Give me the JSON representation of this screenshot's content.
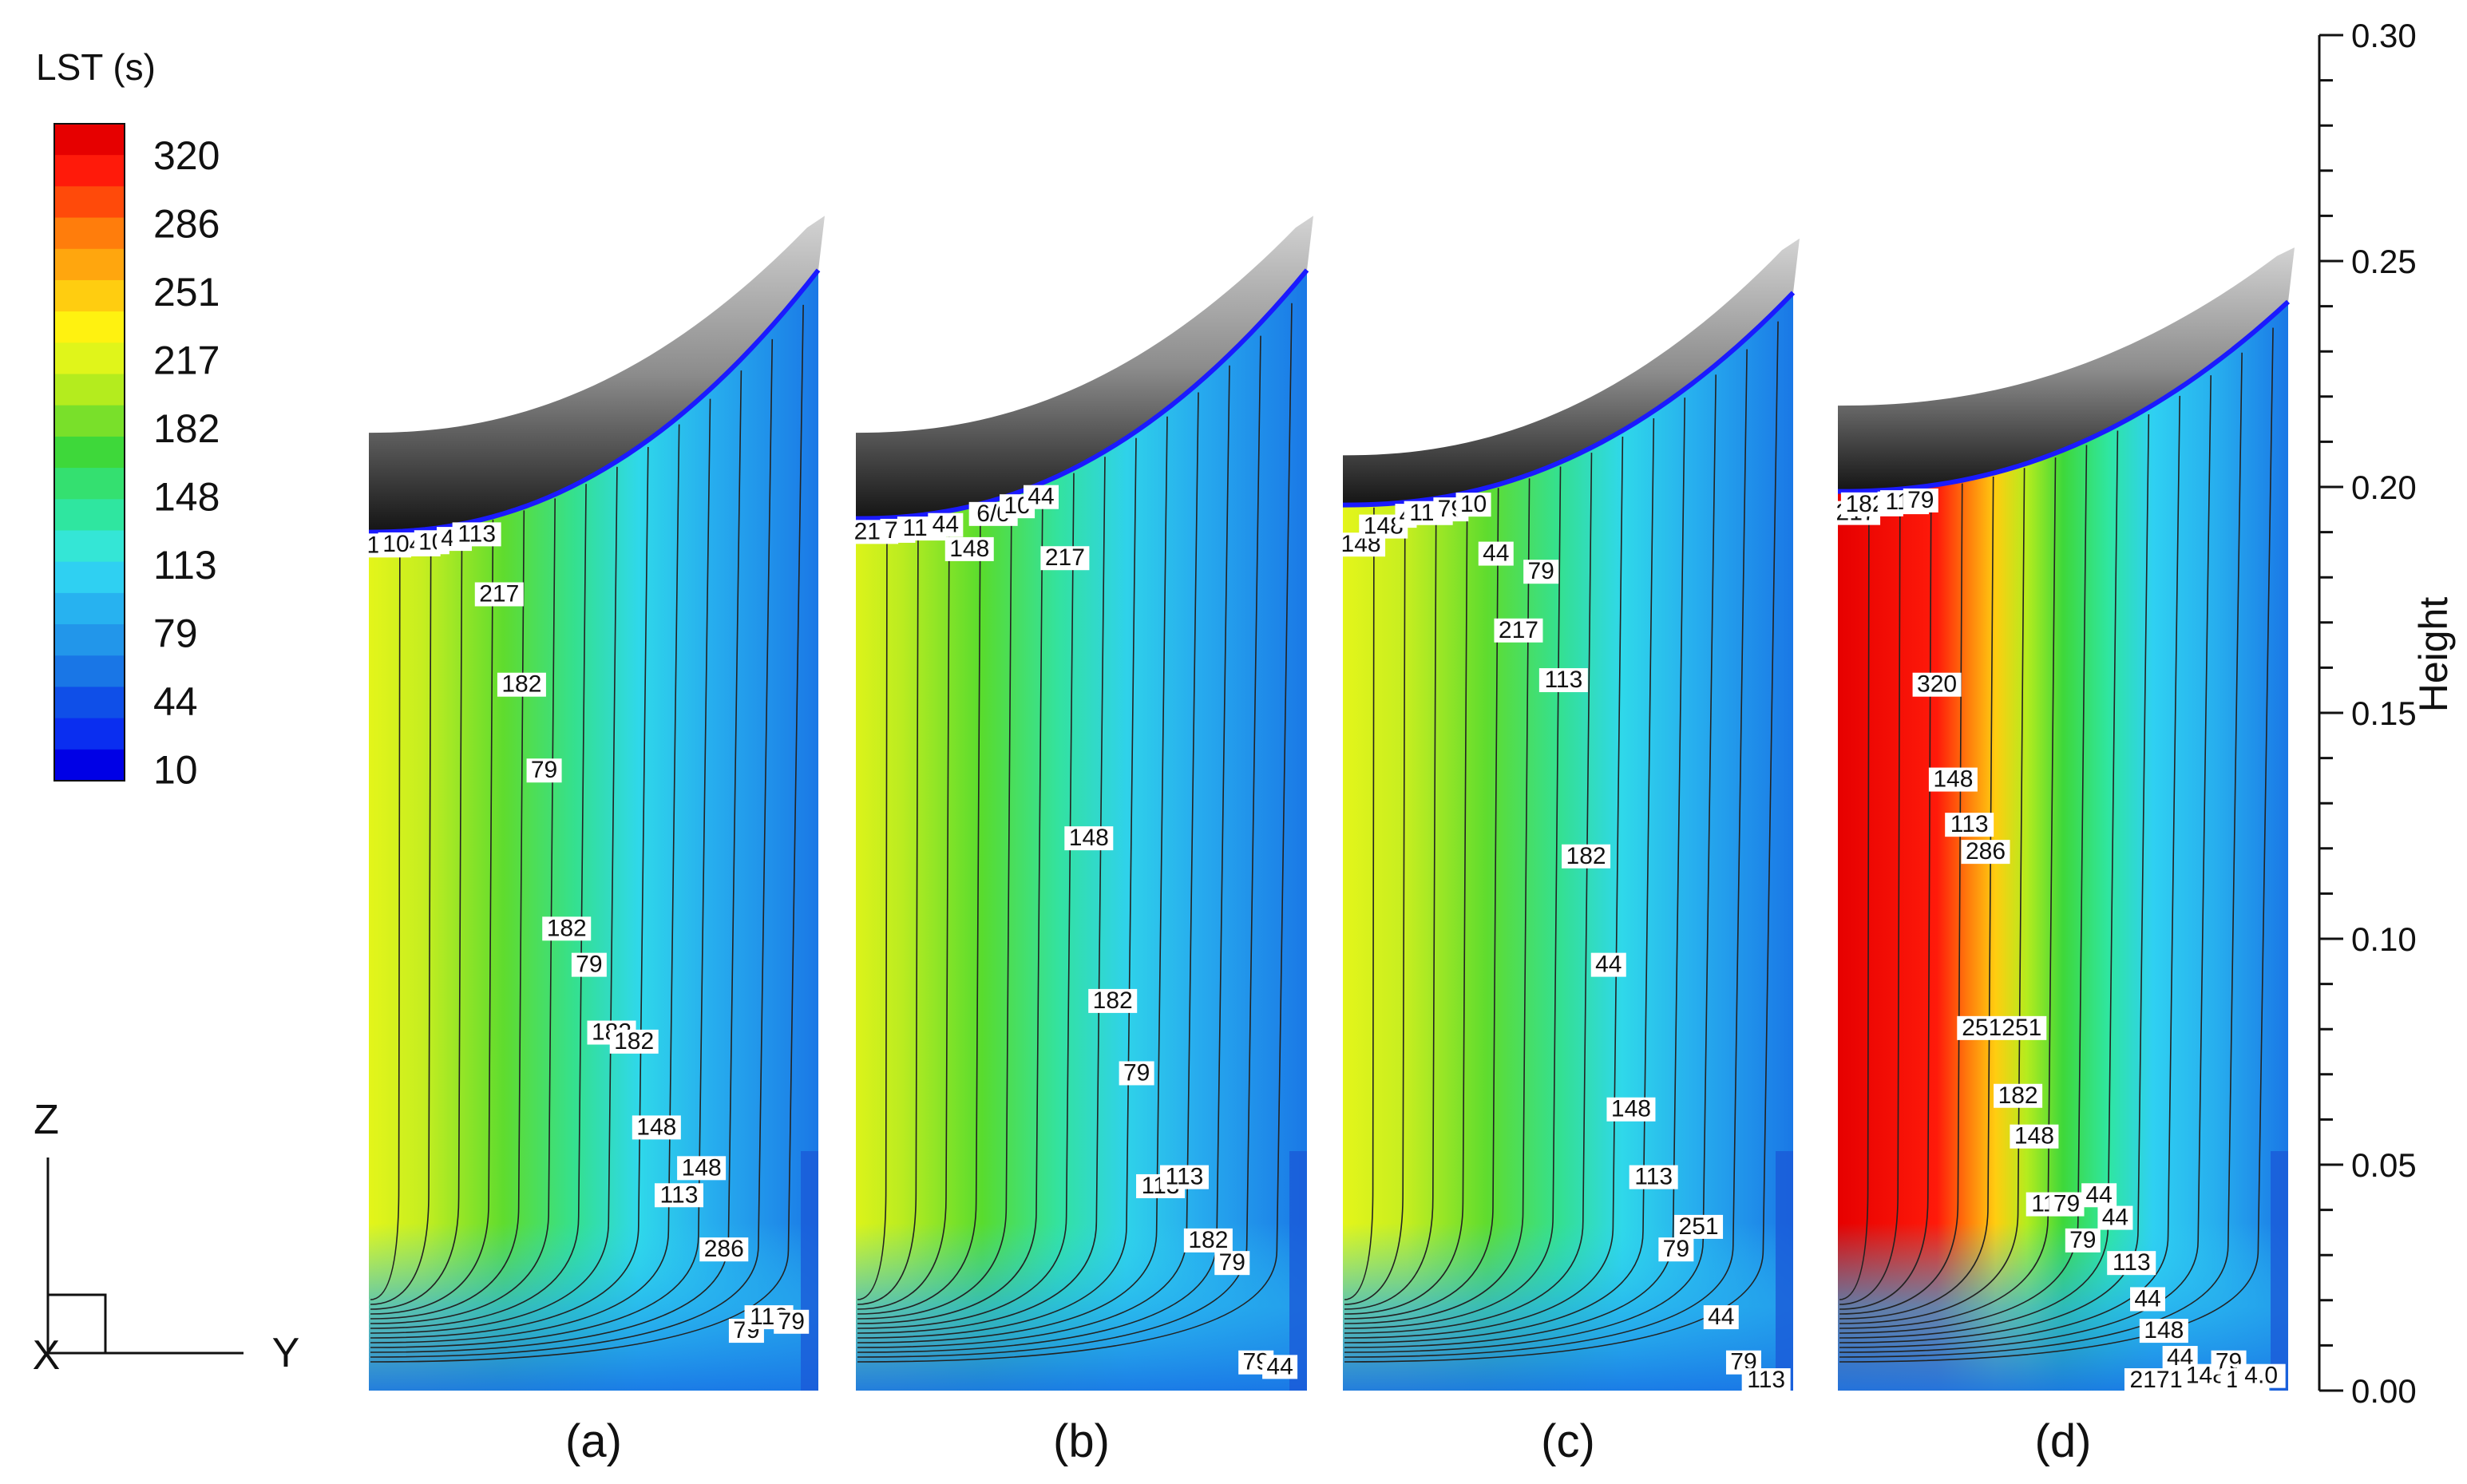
{
  "legend": {
    "title": "LST (s)",
    "levels": [
      "320",
      "286",
      "251",
      "217",
      "182",
      "148",
      "113",
      "79",
      "44",
      "10"
    ]
  },
  "colors": {
    "scale": [
      "#0000e6",
      "#0a2ef0",
      "#0f4fe8",
      "#1976e6",
      "#2296ea",
      "#27b2f0",
      "#2fd0f2",
      "#34e6d6",
      "#2fe6a0",
      "#34e070",
      "#3ed83a",
      "#79e02a",
      "#b4ec1e",
      "#e0f51a",
      "#fff210",
      "#ffcd10",
      "#ffa60e",
      "#ff7d0c",
      "#ff4a0a",
      "#ff1a0a",
      "#e60000"
    ],
    "contour": "#222222",
    "wall_top": "#c9c9c9",
    "wall_bottom": "#111111",
    "wall_edge": "#1a1aff"
  },
  "axes": {
    "ylabel": "Height",
    "ticks": [
      "0.30",
      "0.25",
      "0.20",
      "0.15",
      "0.10",
      "0.05",
      "0.00"
    ]
  },
  "coords": {
    "z": "Z",
    "y": "Y",
    "x": "X"
  },
  "chart_data": {
    "type": "contour",
    "variable": "LST (s)",
    "contour_levels": [
      10,
      44,
      79,
      113,
      148,
      182,
      217,
      251,
      286,
      320
    ],
    "ylabel": "Height",
    "ylim": [
      0.0,
      0.3
    ],
    "yticks": [
      0.0,
      0.05,
      0.1,
      0.15,
      0.2,
      0.25,
      0.3
    ],
    "panels": [
      {
        "caption": "(a)",
        "labels": [
          {
            "text": "148",
            "y": 0.193
          },
          {
            "text": "1048",
            "y": 0.196
          },
          {
            "text": "10",
            "y": 0.203
          },
          {
            "text": "44",
            "y": 0.205
          },
          {
            "text": "113",
            "y": 0.215
          },
          {
            "text": "217",
            "y": 0.175
          },
          {
            "text": "182",
            "y": 0.155
          },
          {
            "text": "79",
            "y": 0.136
          },
          {
            "text": "182",
            "y": 0.101
          },
          {
            "text": "79",
            "y": 0.093
          },
          {
            "text": "182",
            "y": 0.078
          },
          {
            "text": "182",
            "y": 0.076
          },
          {
            "text": "148",
            "y": 0.057
          },
          {
            "text": "113",
            "y": 0.042
          },
          {
            "text": "148",
            "y": 0.048
          },
          {
            "text": "286",
            "y": 0.03
          },
          {
            "text": "79",
            "y": 0.012
          },
          {
            "text": "113",
            "y": 0.015
          },
          {
            "text": "79",
            "y": 0.014
          }
        ]
      },
      {
        "caption": "(b)",
        "labels": [
          {
            "text": "217",
            "y": 0.19
          },
          {
            "text": "79",
            "y": 0.196
          },
          {
            "text": "113",
            "y": 0.203
          },
          {
            "text": "44",
            "y": 0.207
          },
          {
            "text": "148",
            "y": 0.185
          },
          {
            "text": "6/0",
            "y": 0.222
          },
          {
            "text": "10",
            "y": 0.234
          },
          {
            "text": "44",
            "y": 0.227
          },
          {
            "text": "217",
            "y": 0.183
          },
          {
            "text": "148",
            "y": 0.121
          },
          {
            "text": "182",
            "y": 0.085
          },
          {
            "text": "79",
            "y": 0.069
          },
          {
            "text": "113",
            "y": 0.044
          },
          {
            "text": "113",
            "y": 0.046
          },
          {
            "text": "182",
            "y": 0.032
          },
          {
            "text": "79",
            "y": 0.027
          },
          {
            "text": "79",
            "y": 0.005
          },
          {
            "text": "44",
            "y": 0.004
          }
        ]
      },
      {
        "caption": "(c)",
        "labels": [
          {
            "text": "148",
            "y": 0.186
          },
          {
            "text": "148",
            "y": 0.19
          },
          {
            "text": "4",
            "y": 0.196
          },
          {
            "text": "113",
            "y": 0.198
          },
          {
            "text": "79",
            "y": 0.211
          },
          {
            "text": "10",
            "y": 0.233
          },
          {
            "text": "44",
            "y": 0.184
          },
          {
            "text": "217",
            "y": 0.167
          },
          {
            "text": "79",
            "y": 0.18
          },
          {
            "text": "113",
            "y": 0.156
          },
          {
            "text": "182",
            "y": 0.117
          },
          {
            "text": "44",
            "y": 0.093
          },
          {
            "text": "148",
            "y": 0.061
          },
          {
            "text": "113",
            "y": 0.046
          },
          {
            "text": "79",
            "y": 0.03
          },
          {
            "text": "251",
            "y": 0.035
          },
          {
            "text": "44",
            "y": 0.015
          },
          {
            "text": "79",
            "y": 0.005
          },
          {
            "text": "113",
            "y": 0.001
          }
        ]
      },
      {
        "caption": "(d)",
        "labels": [
          {
            "text": "217",
            "y": 0.193
          },
          {
            "text": "1829",
            "y": 0.196
          },
          {
            "text": "4",
            "y": 0.199
          },
          {
            "text": "113",
            "y": 0.203
          },
          {
            "text": "79",
            "y": 0.215
          },
          {
            "text": "320",
            "y": 0.155
          },
          {
            "text": "148",
            "y": 0.134
          },
          {
            "text": "113",
            "y": 0.124
          },
          {
            "text": "286",
            "y": 0.118
          },
          {
            "text": "251251",
            "y": 0.079
          },
          {
            "text": "182",
            "y": 0.064
          },
          {
            "text": "148",
            "y": 0.055
          },
          {
            "text": "113",
            "y": 0.04
          },
          {
            "text": "79",
            "y": 0.04
          },
          {
            "text": "79",
            "y": 0.032
          },
          {
            "text": "44",
            "y": 0.042
          },
          {
            "text": "44",
            "y": 0.037
          },
          {
            "text": "113",
            "y": 0.027
          },
          {
            "text": "44",
            "y": 0.019
          },
          {
            "text": "148",
            "y": 0.012
          },
          {
            "text": "44",
            "y": 0.006
          },
          {
            "text": "2171717182",
            "y": 0.001
          },
          {
            "text": "1483",
            "y": 0.002
          },
          {
            "text": "79",
            "y": 0.005
          },
          {
            "text": "113",
            "y": 0.001
          },
          {
            "text": "4.0",
            "y": 0.002
          }
        ]
      }
    ]
  }
}
